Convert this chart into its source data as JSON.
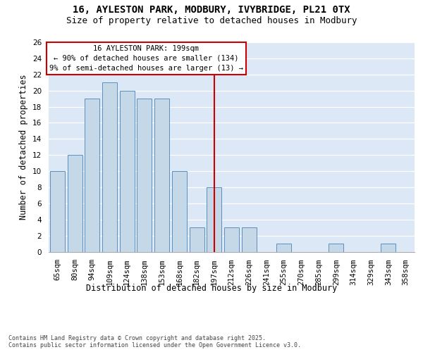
{
  "title_line1": "16, AYLESTON PARK, MODBURY, IVYBRIDGE, PL21 0TX",
  "title_line2": "Size of property relative to detached houses in Modbury",
  "xlabel": "Distribution of detached houses by size in Modbury",
  "ylabel": "Number of detached properties",
  "categories": [
    "65sqm",
    "80sqm",
    "94sqm",
    "109sqm",
    "124sqm",
    "138sqm",
    "153sqm",
    "168sqm",
    "182sqm",
    "197sqm",
    "212sqm",
    "226sqm",
    "241sqm",
    "255sqm",
    "270sqm",
    "285sqm",
    "299sqm",
    "314sqm",
    "329sqm",
    "343sqm",
    "358sqm"
  ],
  "values": [
    10,
    12,
    19,
    21,
    20,
    19,
    19,
    10,
    3,
    8,
    3,
    3,
    0,
    1,
    0,
    0,
    1,
    0,
    0,
    1,
    0
  ],
  "bar_color": "#c5d8e8",
  "bar_edge_color": "#5a8fc0",
  "reference_line_index": 9,
  "reference_line_color": "#cc0000",
  "annotation_text": "16 AYLESTON PARK: 199sqm\n← 90% of detached houses are smaller (134)\n9% of semi-detached houses are larger (13) →",
  "annotation_box_color": "#cc0000",
  "annotation_text_color": "#000000",
  "ylim": [
    0,
    26
  ],
  "yticks": [
    0,
    2,
    4,
    6,
    8,
    10,
    12,
    14,
    16,
    18,
    20,
    22,
    24,
    26
  ],
  "background_color": "#dce8f5",
  "footer_text": "Contains HM Land Registry data © Crown copyright and database right 2025.\nContains public sector information licensed under the Open Government Licence v3.0.",
  "title_fontsize": 10,
  "subtitle_fontsize": 9,
  "axis_label_fontsize": 8.5,
  "tick_fontsize": 7.5,
  "annotation_fontsize": 7.5,
  "footer_fontsize": 6.0
}
